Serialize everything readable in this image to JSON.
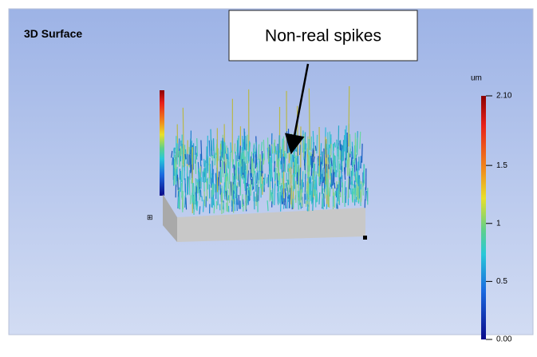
{
  "header": {
    "title": "3D Surface"
  },
  "annotation": {
    "text": "Non-real spikes"
  },
  "color_scale": {
    "unit": "um",
    "range": [
      0,
      2.1
    ],
    "ticks": [
      {
        "value": 2.1,
        "label": "2.10"
      },
      1.5,
      1,
      0.5,
      {
        "value": 0,
        "label": "0.00"
      }
    ]
  }
}
